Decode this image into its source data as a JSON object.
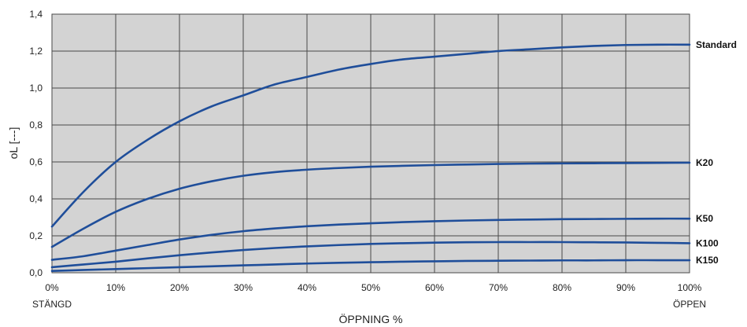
{
  "chart_data": {
    "type": "line",
    "xlabel": "ÖPPNING %",
    "ylabel": "oL  [---]",
    "x_tick_labels": [
      "0%",
      "10%",
      "20%",
      "30%",
      "40%",
      "50%",
      "60%",
      "70%",
      "80%",
      "90%",
      "100%"
    ],
    "y_tick_labels": [
      "0,0",
      "0,2",
      "0,4",
      "0,6",
      "0,8",
      "1,0",
      "1,2",
      "1,4"
    ],
    "x_sub_labels": {
      "start": "STÄNGD",
      "end": "ÖPPEN"
    },
    "xlim": [
      0,
      100
    ],
    "ylim": [
      0,
      1.4
    ],
    "grid": true,
    "colors": {
      "plot_background": "#d3d3d3",
      "line": "#1f4e9a",
      "grid": "#4a4a4a"
    },
    "x": [
      0,
      5,
      10,
      15,
      20,
      25,
      30,
      35,
      40,
      45,
      50,
      55,
      60,
      65,
      70,
      75,
      80,
      85,
      90,
      95,
      100
    ],
    "series": [
      {
        "name": "Standard",
        "values": [
          0.25,
          0.44,
          0.6,
          0.72,
          0.82,
          0.9,
          0.96,
          1.02,
          1.06,
          1.1,
          1.13,
          1.155,
          1.17,
          1.185,
          1.2,
          1.21,
          1.22,
          1.228,
          1.233,
          1.235,
          1.235
        ]
      },
      {
        "name": "K20",
        "values": [
          0.14,
          0.24,
          0.33,
          0.4,
          0.455,
          0.495,
          0.525,
          0.545,
          0.558,
          0.567,
          0.574,
          0.579,
          0.583,
          0.586,
          0.589,
          0.591,
          0.592,
          0.593,
          0.594,
          0.595,
          0.596
        ]
      },
      {
        "name": "K50",
        "values": [
          0.07,
          0.09,
          0.12,
          0.15,
          0.18,
          0.205,
          0.225,
          0.24,
          0.252,
          0.261,
          0.268,
          0.274,
          0.279,
          0.283,
          0.286,
          0.288,
          0.29,
          0.291,
          0.292,
          0.293,
          0.293
        ]
      },
      {
        "name": "K100",
        "values": [
          0.03,
          0.045,
          0.06,
          0.078,
          0.095,
          0.11,
          0.123,
          0.134,
          0.143,
          0.15,
          0.156,
          0.16,
          0.163,
          0.165,
          0.166,
          0.166,
          0.166,
          0.165,
          0.164,
          0.162,
          0.16
        ]
      },
      {
        "name": "K150",
        "values": [
          0.01,
          0.015,
          0.02,
          0.025,
          0.03,
          0.035,
          0.04,
          0.045,
          0.05,
          0.054,
          0.057,
          0.06,
          0.062,
          0.064,
          0.065,
          0.066,
          0.067,
          0.067,
          0.068,
          0.068,
          0.068
        ]
      }
    ]
  }
}
